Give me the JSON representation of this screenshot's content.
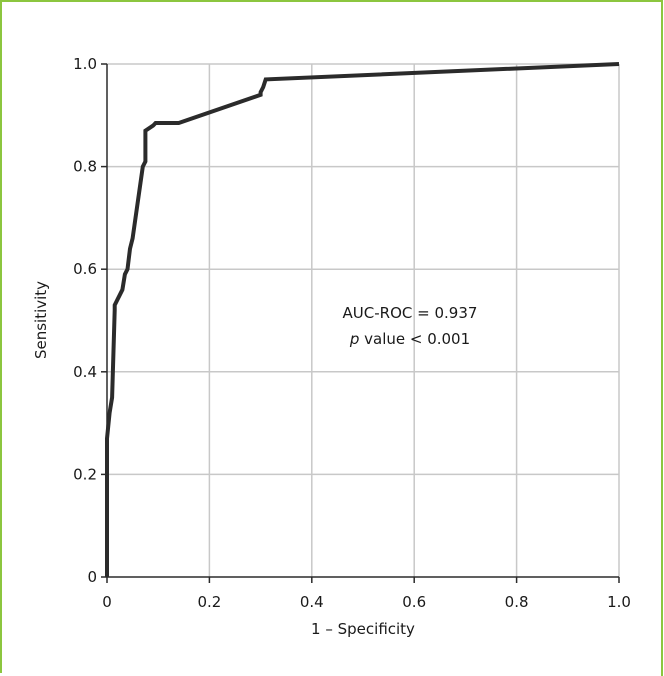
{
  "chart_data": {
    "type": "line",
    "title": "",
    "xlabel": "1 – Specificity",
    "ylabel": "Sensitivity",
    "xlim": [
      0,
      1
    ],
    "ylim": [
      0,
      1
    ],
    "grid": true,
    "x_ticks": [
      "0",
      "0.2",
      "0.4",
      "0.6",
      "0.8",
      "1.0"
    ],
    "y_ticks": [
      "0",
      "0.2",
      "0.4",
      "0.6",
      "0.8",
      "1.0"
    ],
    "annotation": {
      "line1": "AUC-ROC = 0.937",
      "line2_italic": "p",
      "line2_rest": " value < 0.001"
    },
    "series": [
      {
        "x": [
          0,
          0,
          0.005,
          0.01,
          0.015,
          0.015,
          0.03,
          0.035,
          0.04,
          0.045,
          0.05,
          0.07,
          0.075,
          0.075,
          0.09,
          0.095,
          0.14,
          0.3,
          0.3,
          0.305,
          0.31,
          1.0
        ],
        "y": [
          0,
          0.27,
          0.32,
          0.35,
          0.52,
          0.53,
          0.56,
          0.59,
          0.6,
          0.64,
          0.66,
          0.8,
          0.81,
          0.87,
          0.88,
          0.885,
          0.885,
          0.94,
          0.945,
          0.955,
          0.97,
          1.0
        ]
      }
    ]
  }
}
